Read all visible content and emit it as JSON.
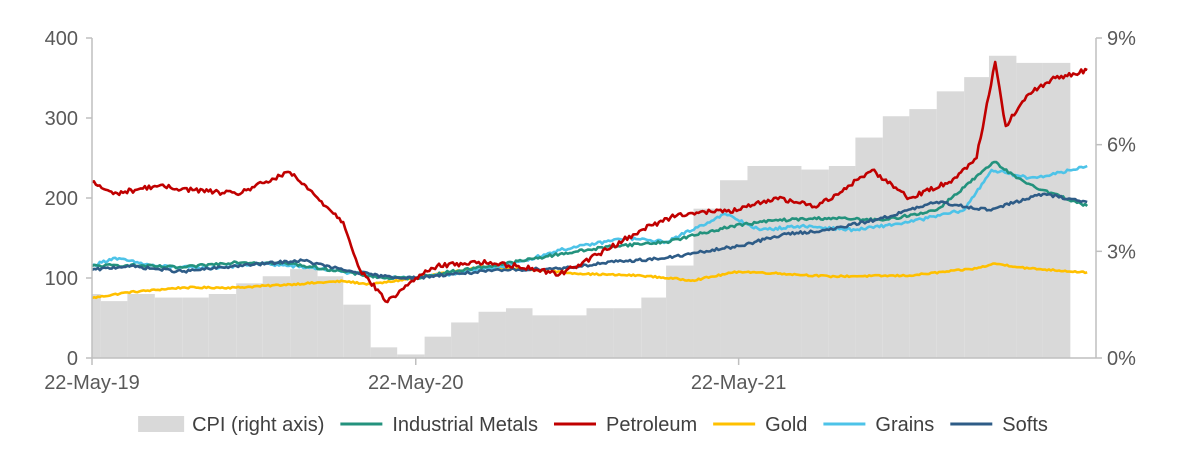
{
  "chart_data": {
    "type": "line",
    "title": "",
    "x_dates": [
      "22-May-19",
      "22-May-20",
      "22-May-21"
    ],
    "xlim": [
      "2019-05-22",
      "2022-06-30"
    ],
    "xticks": [
      {
        "date": "2019-05-22",
        "label": "22-May-19"
      },
      {
        "date": "2020-05-22",
        "label": "22-May-20"
      },
      {
        "date": "2021-05-22",
        "label": "22-May-21"
      }
    ],
    "ylim_left": [
      0,
      400
    ],
    "yticks_left": [
      {
        "value": 0,
        "label": "0"
      },
      {
        "value": 100,
        "label": "100"
      },
      {
        "value": 200,
        "label": "200"
      },
      {
        "value": 300,
        "label": "300"
      },
      {
        "value": 400,
        "label": "400"
      }
    ],
    "ylim_right": [
      0,
      9
    ],
    "yticks_right": [
      {
        "value": 0,
        "label": "0%"
      },
      {
        "value": 3,
        "label": "3%"
      },
      {
        "value": 6,
        "label": "6%"
      },
      {
        "value": 9,
        "label": "9%"
      }
    ],
    "grid": false,
    "legend_position": "bottom",
    "cpi": {
      "name": "CPI (right axis)",
      "axis": "right",
      "color": "#d9d9d9",
      "months": [
        "2019-05",
        "2019-06",
        "2019-07",
        "2019-08",
        "2019-09",
        "2019-10",
        "2019-11",
        "2019-12",
        "2020-01",
        "2020-02",
        "2020-03",
        "2020-04",
        "2020-05",
        "2020-06",
        "2020-07",
        "2020-08",
        "2020-09",
        "2020-10",
        "2020-11",
        "2020-12",
        "2021-01",
        "2021-02",
        "2021-03",
        "2021-04",
        "2021-05",
        "2021-06",
        "2021-07",
        "2021-08",
        "2021-09",
        "2021-10",
        "2021-11",
        "2021-12",
        "2022-01",
        "2022-02",
        "2022-03",
        "2022-04",
        "2022-05"
      ],
      "values": [
        1.8,
        1.6,
        1.8,
        1.7,
        1.7,
        1.8,
        2.1,
        2.3,
        2.5,
        2.3,
        1.5,
        0.3,
        0.1,
        0.6,
        1.0,
        1.3,
        1.4,
        1.2,
        1.2,
        1.4,
        1.4,
        1.7,
        2.6,
        4.2,
        5.0,
        5.4,
        5.4,
        5.3,
        5.4,
        6.2,
        6.8,
        7.0,
        7.5,
        7.9,
        8.5,
        8.3,
        8.3
      ]
    },
    "series": [
      {
        "name": "Industrial Metals",
        "color": "#23927d",
        "points": [
          [
            "2019-05-22",
            115
          ],
          [
            "2019-07-01",
            116
          ],
          [
            "2019-09-01",
            113
          ],
          [
            "2019-11-01",
            120
          ],
          [
            "2020-01-01",
            118
          ],
          [
            "2020-03-01",
            108
          ],
          [
            "2020-04-15",
            100
          ],
          [
            "2020-05-22",
            100
          ],
          [
            "2020-07-01",
            108
          ],
          [
            "2020-09-01",
            118
          ],
          [
            "2020-11-01",
            130
          ],
          [
            "2021-01-01",
            140
          ],
          [
            "2021-03-01",
            145
          ],
          [
            "2021-05-15",
            165
          ],
          [
            "2021-07-01",
            172
          ],
          [
            "2021-09-01",
            175
          ],
          [
            "2021-11-01",
            172
          ],
          [
            "2022-01-01",
            185
          ],
          [
            "2022-03-07",
            245
          ],
          [
            "2022-04-01",
            225
          ],
          [
            "2022-05-01",
            210
          ],
          [
            "2022-06-20",
            190
          ]
        ]
      },
      {
        "name": "Petroleum",
        "color": "#c00000",
        "points": [
          [
            "2019-05-22",
            220
          ],
          [
            "2019-06-15",
            205
          ],
          [
            "2019-08-01",
            215
          ],
          [
            "2019-09-15",
            210
          ],
          [
            "2019-11-01",
            205
          ],
          [
            "2020-01-01",
            232
          ],
          [
            "2020-02-01",
            200
          ],
          [
            "2020-03-01",
            170
          ],
          [
            "2020-03-20",
            110
          ],
          [
            "2020-04-20",
            70
          ],
          [
            "2020-05-22",
            100
          ],
          [
            "2020-06-15",
            115
          ],
          [
            "2020-08-01",
            120
          ],
          [
            "2020-09-15",
            115
          ],
          [
            "2020-11-01",
            105
          ],
          [
            "2020-12-15",
            130
          ],
          [
            "2021-02-01",
            160
          ],
          [
            "2021-03-15",
            180
          ],
          [
            "2021-05-22",
            185
          ],
          [
            "2021-07-01",
            200
          ],
          [
            "2021-08-20",
            190
          ],
          [
            "2021-10-20",
            235
          ],
          [
            "2021-12-01",
            200
          ],
          [
            "2022-01-15",
            220
          ],
          [
            "2022-02-15",
            250
          ],
          [
            "2022-03-08",
            370
          ],
          [
            "2022-03-20",
            290
          ],
          [
            "2022-04-15",
            330
          ],
          [
            "2022-05-15",
            350
          ],
          [
            "2022-06-20",
            360
          ]
        ]
      },
      {
        "name": "Gold",
        "color": "#ffc000",
        "points": [
          [
            "2019-05-22",
            75
          ],
          [
            "2019-07-01",
            82
          ],
          [
            "2019-09-01",
            88
          ],
          [
            "2019-11-01",
            88
          ],
          [
            "2020-01-01",
            92
          ],
          [
            "2020-03-01",
            96
          ],
          [
            "2020-04-01",
            92
          ],
          [
            "2020-05-22",
            100
          ],
          [
            "2020-08-07",
            114
          ],
          [
            "2020-10-01",
            110
          ],
          [
            "2020-12-01",
            105
          ],
          [
            "2021-02-01",
            103
          ],
          [
            "2021-03-31",
            97
          ],
          [
            "2021-05-22",
            108
          ],
          [
            "2021-07-01",
            106
          ],
          [
            "2021-09-01",
            102
          ],
          [
            "2021-12-01",
            103
          ],
          [
            "2022-02-15",
            112
          ],
          [
            "2022-03-08",
            118
          ],
          [
            "2022-04-15",
            112
          ],
          [
            "2022-06-20",
            107
          ]
        ]
      },
      {
        "name": "Grains",
        "color": "#4dc3e8",
        "points": [
          [
            "2019-05-22",
            115
          ],
          [
            "2019-06-15",
            125
          ],
          [
            "2019-08-01",
            115
          ],
          [
            "2019-10-01",
            112
          ],
          [
            "2019-12-01",
            118
          ],
          [
            "2020-02-01",
            112
          ],
          [
            "2020-04-01",
            103
          ],
          [
            "2020-05-22",
            100
          ],
          [
            "2020-07-01",
            105
          ],
          [
            "2020-09-01",
            115
          ],
          [
            "2020-11-01",
            135
          ],
          [
            "2021-01-15",
            150
          ],
          [
            "2021-03-01",
            145
          ],
          [
            "2021-05-07",
            180
          ],
          [
            "2021-06-15",
            160
          ],
          [
            "2021-08-01",
            165
          ],
          [
            "2021-10-01",
            160
          ],
          [
            "2021-12-01",
            170
          ],
          [
            "2022-02-01",
            185
          ],
          [
            "2022-03-04",
            235
          ],
          [
            "2022-04-15",
            225
          ],
          [
            "2022-05-15",
            230
          ],
          [
            "2022-06-20",
            240
          ]
        ]
      },
      {
        "name": "Softs",
        "color": "#2e5c87",
        "points": [
          [
            "2019-05-22",
            110
          ],
          [
            "2019-07-01",
            115
          ],
          [
            "2019-09-01",
            108
          ],
          [
            "2019-11-01",
            115
          ],
          [
            "2020-01-15",
            122
          ],
          [
            "2020-03-01",
            110
          ],
          [
            "2020-04-15",
            102
          ],
          [
            "2020-05-22",
            100
          ],
          [
            "2020-07-01",
            105
          ],
          [
            "2020-09-01",
            110
          ],
          [
            "2020-11-01",
            112
          ],
          [
            "2021-01-01",
            120
          ],
          [
            "2021-03-01",
            125
          ],
          [
            "2021-05-22",
            140
          ],
          [
            "2021-07-15",
            155
          ],
          [
            "2021-09-01",
            160
          ],
          [
            "2021-11-01",
            175
          ],
          [
            "2022-01-01",
            195
          ],
          [
            "2022-03-01",
            185
          ],
          [
            "2022-05-01",
            205
          ],
          [
            "2022-06-20",
            195
          ]
        ]
      }
    ],
    "legend": [
      {
        "name": "CPI (right axis)",
        "kind": "patch",
        "color": "#d9d9d9"
      },
      {
        "name": "Industrial Metals",
        "kind": "line",
        "color": "#23927d"
      },
      {
        "name": "Petroleum",
        "kind": "line",
        "color": "#c00000"
      },
      {
        "name": "Gold",
        "kind": "line",
        "color": "#ffc000"
      },
      {
        "name": "Grains",
        "kind": "line",
        "color": "#4dc3e8"
      },
      {
        "name": "Softs",
        "kind": "line",
        "color": "#2e5c87"
      }
    ]
  }
}
